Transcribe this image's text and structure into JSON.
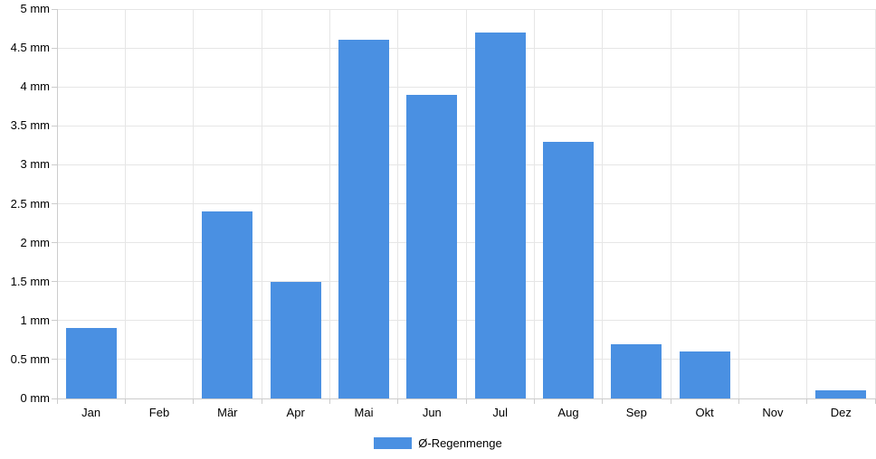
{
  "chart_data": {
    "type": "bar",
    "title": "",
    "xlabel": "",
    "ylabel": "",
    "categories": [
      "Jan",
      "Feb",
      "Mär",
      "Apr",
      "Mai",
      "Jun",
      "Jul",
      "Aug",
      "Sep",
      "Okt",
      "Nov",
      "Dez"
    ],
    "series": [
      {
        "name": "Ø-Regenmenge",
        "values": [
          0.9,
          0,
          2.4,
          1.5,
          4.6,
          3.9,
          4.7,
          3.3,
          0.7,
          0.6,
          0,
          0.1
        ],
        "color": "#4a90e2"
      }
    ],
    "y_unit": "mm",
    "ylim": [
      0,
      5
    ],
    "y_tick_step": 0.5,
    "y_tick_values": [
      0,
      0.5,
      1,
      1.5,
      2,
      2.5,
      3,
      3.5,
      4,
      4.5,
      5
    ],
    "y_tick_labels": [
      "0 mm",
      "0.5 mm",
      "1 mm",
      "1.5 mm",
      "2 mm",
      "2.5 mm",
      "3 mm",
      "3.5 mm",
      "4 mm",
      "4.5 mm",
      "5 mm"
    ],
    "grid": true,
    "legend_position": "bottom"
  },
  "legend": {
    "label": "Ø-Regenmenge",
    "swatch_color": "#4a90e2"
  },
  "colors": {
    "bar": "#4a90e2",
    "gridline": "#e6e6e6",
    "axis": "#cccccc",
    "text": "#000000",
    "background": "#ffffff"
  }
}
